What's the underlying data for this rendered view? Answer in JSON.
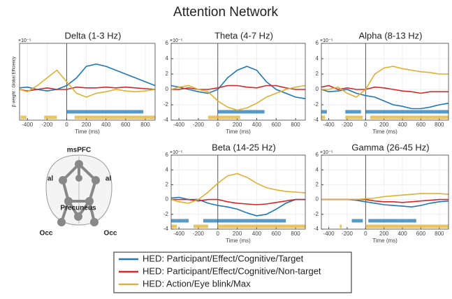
{
  "title": "Attention Network",
  "legend": [
    {
      "name": "HED: Participant/Effect/Cognitive/Target",
      "color": "#1f77b4"
    },
    {
      "name": "HED: Participant/Effect/Cognitive/Non-target",
      "color": "#d62728"
    },
    {
      "name": "HED: Action/Eye blink/Max",
      "color": "#e0b030"
    }
  ],
  "diagram": {
    "labels": [
      "msPFC",
      "al",
      "al",
      "Precuneus",
      "Occ",
      "Occ"
    ]
  },
  "chart_data": [
    {
      "type": "line",
      "title": "Delta (1-3 Hz)",
      "xlabel": "Time (ms)",
      "ylabel": "β weight : Global Efficiency",
      "y_multiplier": "×10⁻⁵",
      "grid": true,
      "x": [
        -480,
        -400,
        -300,
        -200,
        -100,
        0,
        100,
        200,
        300,
        400,
        500,
        600,
        700,
        800,
        900
      ],
      "xlim": [
        -480,
        900
      ],
      "xticks": [
        -400,
        -200,
        0,
        200,
        400,
        600,
        800
      ],
      "ylim": [
        -4,
        6
      ],
      "series": [
        {
          "values": [
            0.2,
            0.3,
            0,
            -0.2,
            0,
            0.5,
            1.5,
            3.0,
            3.3,
            3.0,
            2.5,
            2.0,
            1.5,
            1.0,
            0.5
          ],
          "sig": [
            [
              0,
              780
            ]
          ]
        },
        {
          "values": [
            0,
            -0.2,
            0,
            0.2,
            0,
            0,
            0.3,
            0.2,
            0.2,
            0.3,
            0.2,
            0.3,
            0.2,
            0.1,
            0
          ],
          "sig": []
        },
        {
          "values": [
            0,
            -0.3,
            0.5,
            1.5,
            2.5,
            1.0,
            -0.5,
            -1.0,
            -0.5,
            -0.3,
            0,
            -0.2,
            -0.3,
            -0.2,
            0
          ],
          "sig": [
            [
              -470,
              -410
            ],
            [
              -230,
              -100
            ],
            [
              80,
              900
            ]
          ]
        }
      ]
    },
    {
      "type": "line",
      "title": "Theta (4-7 Hz)",
      "xlabel": "Time (ms)",
      "y_multiplier": "×10⁻⁵",
      "grid": true,
      "x": [
        -480,
        -400,
        -300,
        -200,
        -100,
        0,
        100,
        200,
        300,
        400,
        500,
        600,
        700,
        800,
        900
      ],
      "xlim": [
        -480,
        900
      ],
      "xticks": [
        -400,
        -200,
        0,
        200,
        400,
        600,
        800
      ],
      "ylim": [
        -4,
        6
      ],
      "yticks": [
        -4,
        -2,
        0,
        2,
        4,
        6
      ],
      "series": [
        {
          "values": [
            0.5,
            0.3,
            0,
            -0.3,
            -0.5,
            0,
            1.5,
            2.5,
            3.0,
            2.5,
            1.0,
            0,
            -0.5,
            -1.0,
            -1.2
          ],
          "sig": [
            [
              0,
              480
            ]
          ]
        },
        {
          "values": [
            0,
            0,
            0.2,
            0,
            0,
            0.2,
            0.5,
            0.5,
            0.3,
            0.2,
            0.5,
            0.5,
            0.2,
            0,
            0
          ],
          "sig": []
        },
        {
          "values": [
            0,
            0.3,
            0.5,
            0,
            -0.3,
            -1.5,
            -2.3,
            -2.7,
            -2.4,
            -1.8,
            -1.0,
            -0.5,
            0,
            0.3,
            0.5
          ],
          "sig": [
            [
              -100,
              230
            ]
          ]
        }
      ]
    },
    {
      "type": "line",
      "title": "Alpha (8-13 Hz)",
      "xlabel": "Time (ms)",
      "y_multiplier": "×10⁻⁵",
      "grid": true,
      "x": [
        -480,
        -400,
        -300,
        -200,
        -100,
        0,
        100,
        200,
        300,
        400,
        500,
        600,
        700,
        800,
        900
      ],
      "xlim": [
        -480,
        900
      ],
      "xticks": [
        -400,
        -200,
        0,
        200,
        400,
        600,
        800
      ],
      "ylim": [
        -4,
        6
      ],
      "yticks": [
        -4,
        -2,
        0,
        2,
        4,
        6
      ],
      "series": [
        {
          "values": [
            0,
            -0.3,
            -0.2,
            0,
            -0.5,
            -0.8,
            -1.0,
            -1.5,
            -2.0,
            -2.2,
            -2.5,
            -2.5,
            -2.3,
            -2.0,
            -1.8
          ],
          "sig": [
            [
              -480,
              -420
            ],
            [
              -220,
              -50
            ],
            [
              0,
              900
            ]
          ]
        },
        {
          "values": [
            0.3,
            0.5,
            0,
            0.2,
            0,
            0,
            0.3,
            0.2,
            0,
            -0.2,
            -0.3,
            -0.5,
            -0.3,
            -0.3,
            -0.3
          ],
          "sig": []
        },
        {
          "values": [
            0,
            0,
            0.3,
            -0.5,
            -1.0,
            0,
            2.0,
            2.8,
            3.0,
            2.7,
            2.5,
            2.3,
            2.2,
            2.0,
            2.0
          ],
          "sig": [
            [
              -480,
              -440
            ],
            [
              -220,
              -30
            ],
            [
              50,
              900
            ]
          ]
        }
      ]
    },
    {
      "type": "line",
      "title": "Beta (14-25 Hz)",
      "xlabel": "Time (ms)",
      "y_multiplier": "×10⁻⁵",
      "grid": true,
      "x": [
        -480,
        -400,
        -300,
        -200,
        -100,
        0,
        100,
        200,
        300,
        400,
        500,
        600,
        700,
        800,
        900
      ],
      "xlim": [
        -480,
        900
      ],
      "xticks": [
        -400,
        -200,
        0,
        200,
        400,
        600,
        800
      ],
      "ylim": [
        -4,
        6
      ],
      "yticks": [
        -4,
        -2,
        0,
        2,
        4,
        6
      ],
      "series": [
        {
          "values": [
            0.2,
            0.3,
            0,
            0,
            -0.5,
            -0.8,
            -1.0,
            -1.3,
            -1.8,
            -2.2,
            -2.0,
            -1.3,
            -0.5,
            0,
            0
          ],
          "sig": [
            [
              -480,
              -300
            ],
            [
              -150,
              700
            ]
          ]
        },
        {
          "values": [
            0,
            0,
            0,
            -0.2,
            0,
            0,
            -0.3,
            -0.5,
            -0.6,
            -0.7,
            -0.6,
            -0.4,
            -0.2,
            0,
            0
          ],
          "sig": []
        },
        {
          "values": [
            0,
            -0.3,
            -0.5,
            0,
            1.0,
            2.2,
            3.2,
            3.5,
            3.0,
            2.2,
            1.6,
            1.3,
            1.1,
            1.0,
            0.9
          ],
          "sig": [
            [
              -480,
              -420
            ],
            [
              -250,
              -100
            ],
            [
              0,
              900
            ]
          ]
        }
      ]
    },
    {
      "type": "line",
      "title": "Gamma (26-45 Hz)",
      "xlabel": "Time (ms)",
      "y_multiplier": "×10⁻⁵",
      "grid": true,
      "x": [
        -480,
        -400,
        -300,
        -200,
        -100,
        0,
        100,
        200,
        300,
        400,
        500,
        600,
        700,
        800,
        900
      ],
      "xlim": [
        -480,
        900
      ],
      "xticks": [
        -400,
        -200,
        0,
        200,
        400,
        600,
        800
      ],
      "ylim": [
        -4,
        6
      ],
      "yticks": [
        -4,
        -2,
        0,
        2,
        4,
        6
      ],
      "series": [
        {
          "values": [
            0,
            0,
            0,
            0,
            -0.1,
            -0.3,
            -0.5,
            -0.7,
            -0.8,
            -0.9,
            -1.0,
            -0.8,
            -0.5,
            -0.3,
            -0.2
          ],
          "sig": [
            [
              -150,
              -30
            ],
            [
              30,
              550
            ]
          ]
        },
        {
          "values": [
            0,
            0,
            0,
            0,
            0,
            0,
            -0.2,
            -0.3,
            -0.3,
            -0.4,
            -0.3,
            -0.2,
            -0.1,
            0,
            0
          ],
          "sig": []
        },
        {
          "values": [
            0,
            0,
            0,
            0,
            0,
            0.1,
            0.2,
            0.4,
            0.5,
            0.6,
            0.7,
            0.8,
            0.8,
            0.8,
            0.7
          ],
          "sig": [
            [
              -280,
              -260
            ],
            [
              0,
              900
            ]
          ]
        }
      ]
    }
  ]
}
